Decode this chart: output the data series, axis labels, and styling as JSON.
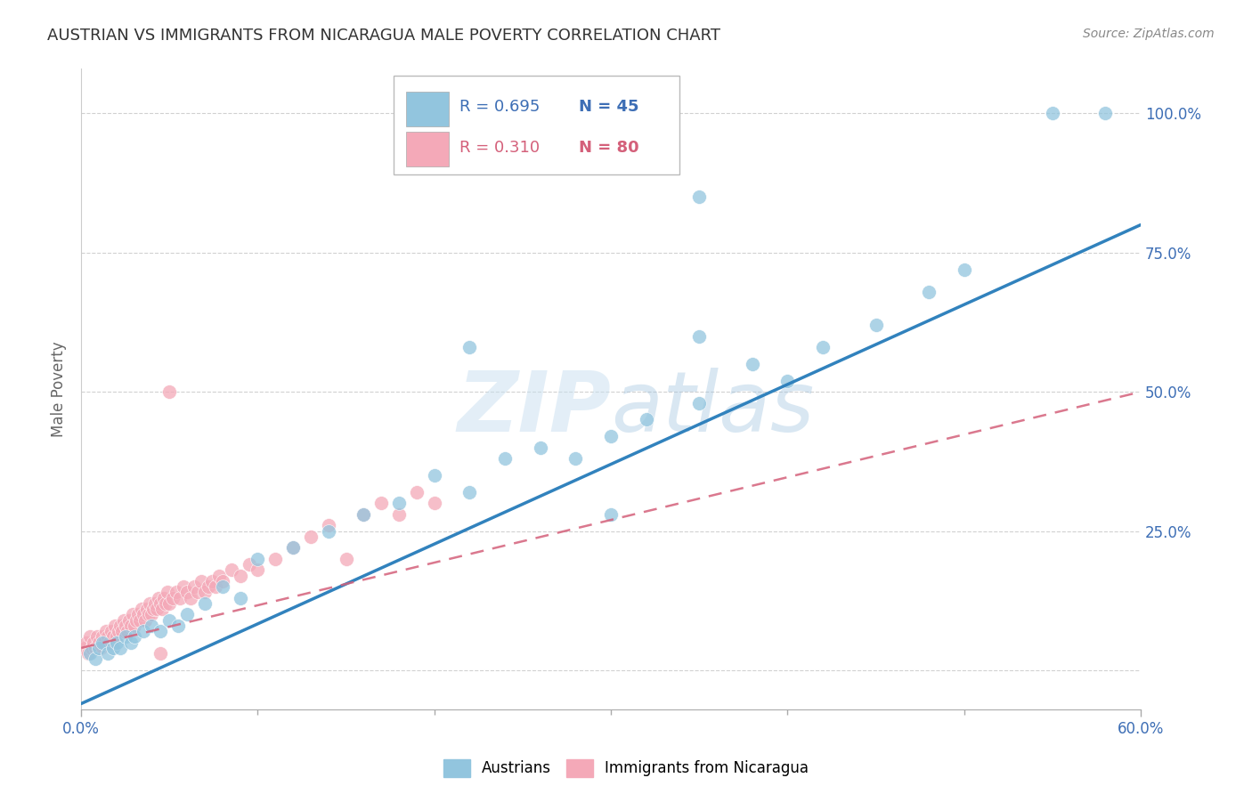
{
  "title": "AUSTRIAN VS IMMIGRANTS FROM NICARAGUA MALE POVERTY CORRELATION CHART",
  "source": "Source: ZipAtlas.com",
  "ylabel": "Male Poverty",
  "ytick_labels": [
    "100.0%",
    "75.0%",
    "50.0%",
    "25.0%"
  ],
  "ytick_values": [
    1.0,
    0.75,
    0.5,
    0.25
  ],
  "xmin": 0.0,
  "xmax": 0.6,
  "ymin": -0.07,
  "ymax": 1.08,
  "legend_blue_R": "R = 0.695",
  "legend_blue_N": "N = 45",
  "legend_pink_R": "R = 0.310",
  "legend_pink_N": "N = 80",
  "blue_color": "#92c5de",
  "pink_color": "#f4a9b8",
  "blue_line_color": "#3182bd",
  "pink_line_color": "#d4607a",
  "watermark_color": "#b8d4e8",
  "grid_color": "#cccccc",
  "blue_line_x0": 0.0,
  "blue_line_y0": -0.06,
  "blue_line_x1": 0.6,
  "blue_line_y1": 0.8,
  "pink_line_x0": 0.0,
  "pink_line_y0": 0.04,
  "pink_line_x1": 0.6,
  "pink_line_y1": 0.5,
  "blue_x": [
    0.005,
    0.008,
    0.01,
    0.012,
    0.015,
    0.018,
    0.02,
    0.022,
    0.025,
    0.028,
    0.03,
    0.035,
    0.04,
    0.045,
    0.05,
    0.055,
    0.06,
    0.07,
    0.08,
    0.09,
    0.1,
    0.12,
    0.14,
    0.16,
    0.18,
    0.2,
    0.22,
    0.24,
    0.26,
    0.28,
    0.3,
    0.32,
    0.35,
    0.38,
    0.4,
    0.42,
    0.45,
    0.48,
    0.5,
    0.35,
    0.22,
    0.55,
    0.58,
    0.35,
    0.3
  ],
  "blue_y": [
    0.03,
    0.02,
    0.04,
    0.05,
    0.03,
    0.04,
    0.05,
    0.04,
    0.06,
    0.05,
    0.06,
    0.07,
    0.08,
    0.07,
    0.09,
    0.08,
    0.1,
    0.12,
    0.15,
    0.13,
    0.2,
    0.22,
    0.25,
    0.28,
    0.3,
    0.35,
    0.32,
    0.38,
    0.4,
    0.38,
    0.42,
    0.45,
    0.48,
    0.55,
    0.52,
    0.58,
    0.62,
    0.68,
    0.72,
    0.6,
    0.58,
    1.0,
    1.0,
    0.85,
    0.28
  ],
  "pink_x": [
    0.002,
    0.003,
    0.004,
    0.005,
    0.006,
    0.007,
    0.008,
    0.009,
    0.01,
    0.011,
    0.012,
    0.013,
    0.014,
    0.015,
    0.016,
    0.017,
    0.018,
    0.019,
    0.02,
    0.021,
    0.022,
    0.023,
    0.024,
    0.025,
    0.026,
    0.027,
    0.028,
    0.029,
    0.03,
    0.031,
    0.032,
    0.033,
    0.034,
    0.035,
    0.036,
    0.037,
    0.038,
    0.039,
    0.04,
    0.041,
    0.042,
    0.043,
    0.044,
    0.045,
    0.046,
    0.047,
    0.048,
    0.049,
    0.05,
    0.052,
    0.054,
    0.056,
    0.058,
    0.06,
    0.062,
    0.064,
    0.066,
    0.068,
    0.07,
    0.072,
    0.074,
    0.076,
    0.078,
    0.08,
    0.085,
    0.09,
    0.095,
    0.1,
    0.11,
    0.12,
    0.13,
    0.14,
    0.15,
    0.16,
    0.17,
    0.18,
    0.19,
    0.2,
    0.05,
    0.045
  ],
  "pink_y": [
    0.04,
    0.05,
    0.03,
    0.06,
    0.04,
    0.05,
    0.04,
    0.06,
    0.05,
    0.04,
    0.06,
    0.05,
    0.07,
    0.06,
    0.05,
    0.07,
    0.06,
    0.08,
    0.06,
    0.07,
    0.08,
    0.07,
    0.09,
    0.08,
    0.07,
    0.09,
    0.08,
    0.1,
    0.08,
    0.09,
    0.1,
    0.09,
    0.11,
    0.1,
    0.09,
    0.11,
    0.1,
    0.12,
    0.1,
    0.11,
    0.12,
    0.11,
    0.13,
    0.12,
    0.11,
    0.13,
    0.12,
    0.14,
    0.12,
    0.13,
    0.14,
    0.13,
    0.15,
    0.14,
    0.13,
    0.15,
    0.14,
    0.16,
    0.14,
    0.15,
    0.16,
    0.15,
    0.17,
    0.16,
    0.18,
    0.17,
    0.19,
    0.18,
    0.2,
    0.22,
    0.24,
    0.26,
    0.2,
    0.28,
    0.3,
    0.28,
    0.32,
    0.3,
    0.5,
    0.03
  ]
}
